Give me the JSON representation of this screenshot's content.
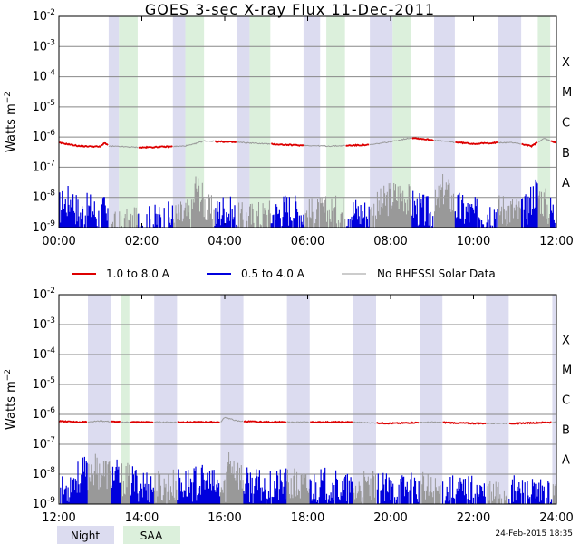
{
  "title": "GOES 3-sec X-ray Flux   11-Dec-2011",
  "timestamp": "24-Feb-2015 18:35",
  "colors": {
    "long": "#dd0000",
    "short": "#0000dd",
    "no_data": "#999999",
    "night": "#dcdcf0",
    "saa": "#dcf0dc",
    "grid": "#888888"
  },
  "legend": {
    "long": "1.0 to 8.0 A",
    "short": "0.5 to 4.0 A",
    "no_data": "No RHESSI Solar Data",
    "night": "Night",
    "saa": "SAA"
  },
  "chart_data": [
    {
      "type": "line",
      "panel": "top",
      "ylabel": "Watts m^-2",
      "yscale": "log",
      "ylim": [
        1e-09,
        0.01
      ],
      "xlim_hours": [
        0,
        12
      ],
      "x_ticks": [
        "00:00",
        "02:00",
        "04:00",
        "06:00",
        "08:00",
        "10:00",
        "12:00"
      ],
      "y_ticks": [
        "10^-9",
        "10^-8",
        "10^-7",
        "10^-6",
        "10^-5",
        "10^-4",
        "10^-3",
        "10^-2"
      ],
      "goes_classes": [
        "A",
        "B",
        "C",
        "M",
        "X"
      ],
      "night_intervals_h": [
        [
          1.2,
          1.45
        ],
        [
          2.75,
          3.05
        ],
        [
          4.3,
          4.6
        ],
        [
          5.9,
          6.3
        ],
        [
          7.5,
          8.05
        ],
        [
          9.05,
          9.55
        ],
        [
          10.6,
          11.15
        ]
      ],
      "saa_intervals_h": [
        [
          1.45,
          1.9
        ],
        [
          3.05,
          3.5
        ],
        [
          4.6,
          5.1
        ],
        [
          6.45,
          6.9
        ],
        [
          8.05,
          8.5
        ],
        [
          11.55,
          11.85
        ]
      ],
      "long_series": {
        "x_h": [
          0,
          0.5,
          1.0,
          1.1,
          1.2,
          2.0,
          3.0,
          3.2,
          3.5,
          4.5,
          5.5,
          6.5,
          7.5,
          8.0,
          8.5,
          9.0,
          9.4,
          10.0,
          10.6,
          11.0,
          11.4,
          11.7,
          12.0
        ],
        "flux": [
          6.5e-07,
          5e-07,
          4.8e-07,
          6.5e-07,
          5e-07,
          4.5e-07,
          5e-07,
          5.5e-07,
          7.5e-07,
          6.5e-07,
          5.5e-07,
          5e-07,
          5.5e-07,
          7e-07,
          9.5e-07,
          8e-07,
          7e-07,
          6e-07,
          6.5e-07,
          6.5e-07,
          5e-07,
          9e-07,
          6.5e-07
        ],
        "gap_hours": [
          [
            1.2,
            1.9
          ],
          [
            2.75,
            3.5
          ],
          [
            3.5,
            3.75
          ],
          [
            4.3,
            5.1
          ],
          [
            5.9,
            6.9
          ],
          [
            7.5,
            8.5
          ],
          [
            9.05,
            9.55
          ],
          [
            10.6,
            11.15
          ],
          [
            11.55,
            11.85
          ]
        ]
      },
      "short_series": {
        "x_h": [
          0,
          0.3,
          0.5,
          0.8,
          1.0,
          1.1,
          1.2,
          3.2,
          3.3,
          3.6,
          3.8,
          4.0,
          4.3,
          5.2,
          5.5,
          6.0,
          7.0,
          7.5,
          8.0,
          8.3,
          8.6,
          9.0,
          9.3,
          9.6,
          10.0,
          10.5,
          10.8,
          11.2,
          11.5,
          11.8,
          12.0
        ],
        "flux": [
          5e-09,
          1e-08,
          3e-09,
          5e-09,
          2e-09,
          5e-09,
          1e-09,
          3e-09,
          3e-08,
          4e-09,
          3e-09,
          5e-09,
          2e-09,
          3e-09,
          5e-09,
          3e-09,
          4e-09,
          3e-09,
          1.2e-08,
          1.5e-08,
          5e-09,
          3e-09,
          2.5e-08,
          5e-09,
          3e-09,
          4e-09,
          5e-09,
          3e-09,
          2e-08,
          5e-09,
          3e-09
        ]
      }
    },
    {
      "type": "line",
      "panel": "bottom",
      "ylabel": "Watts m^-2",
      "yscale": "log",
      "ylim": [
        1e-09,
        0.01
      ],
      "xlim_hours": [
        12,
        24
      ],
      "x_ticks": [
        "12:00",
        "14:00",
        "16:00",
        "18:00",
        "20:00",
        "22:00",
        "24:00"
      ],
      "y_ticks": [
        "10^-9",
        "10^-8",
        "10^-7",
        "10^-6",
        "10^-5",
        "10^-4",
        "10^-3",
        "10^-2"
      ],
      "goes_classes": [
        "A",
        "B",
        "C",
        "M",
        "X"
      ],
      "night_intervals_h": [
        [
          12.7,
          13.25
        ],
        [
          14.3,
          14.85
        ],
        [
          15.9,
          16.45
        ],
        [
          17.5,
          18.05
        ],
        [
          19.1,
          19.65
        ],
        [
          20.7,
          21.25
        ],
        [
          22.3,
          22.85
        ],
        [
          23.9,
          24.0
        ]
      ],
      "saa_intervals_h": [
        [
          13.5,
          13.7
        ]
      ],
      "long_series": {
        "x_h": [
          12,
          12.5,
          13.0,
          13.5,
          14.0,
          14.5,
          15.0,
          15.5,
          15.9,
          16.0,
          16.3,
          17.0,
          18.0,
          19.0,
          20.0,
          21.0,
          22.0,
          23.0,
          24.0
        ],
        "flux": [
          6e-07,
          5.5e-07,
          6e-07,
          5.5e-07,
          5.5e-07,
          5.5e-07,
          5.5e-07,
          5.5e-07,
          5.5e-07,
          8e-07,
          6e-07,
          5.5e-07,
          5.5e-07,
          5.5e-07,
          5e-07,
          5.5e-07,
          5e-07,
          5e-07,
          5.5e-07
        ],
        "gap_hours": [
          [
            12.7,
            13.25
          ],
          [
            13.5,
            13.7
          ],
          [
            14.3,
            14.85
          ],
          [
            15.9,
            16.45
          ],
          [
            17.5,
            18.05
          ],
          [
            19.1,
            19.65
          ],
          [
            20.7,
            21.25
          ],
          [
            22.3,
            22.85
          ],
          [
            23.9,
            24.0
          ]
        ]
      },
      "short_series": {
        "x_h": [
          12,
          12.4,
          12.8,
          13.2,
          13.5,
          14.0,
          14.5,
          15.0,
          15.5,
          16.0,
          16.1,
          16.5,
          17.0,
          17.5,
          18.0,
          18.5,
          19.0,
          19.5,
          20.0,
          20.5,
          21.0,
          21.5,
          22.0,
          22.5,
          23.0,
          23.5,
          24.0
        ],
        "flux": [
          2e-09,
          8e-09,
          1.5e-08,
          1.2e-08,
          8e-09,
          5e-09,
          4e-09,
          5e-09,
          6e-09,
          3e-09,
          4e-08,
          5e-09,
          4e-09,
          5e-09,
          4e-09,
          5e-09,
          3e-09,
          4e-09,
          3e-09,
          4e-09,
          3e-09,
          3e-09,
          3e-09,
          2e-09,
          3e-09,
          2e-09,
          2e-09
        ]
      }
    }
  ]
}
